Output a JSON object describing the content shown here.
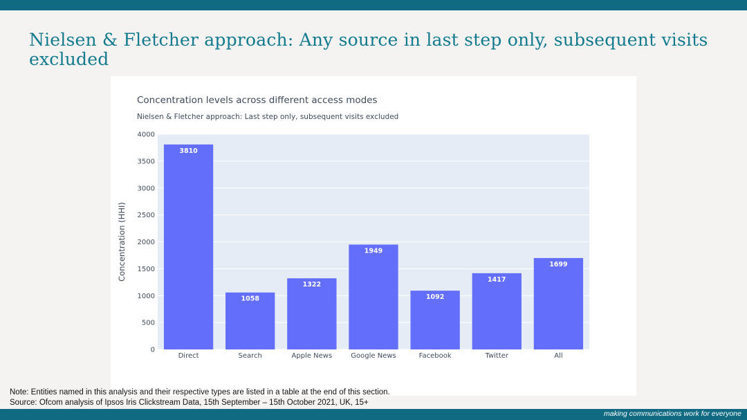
{
  "slide": {
    "title": "Nielsen & Fletcher approach: Any source in last step only, subsequent visits excluded"
  },
  "chart_data": {
    "type": "bar",
    "title": "Concentration levels across different access modes",
    "subtitle": "Nielsen & Fletcher approach: Last step only, subsequent visits excluded",
    "xlabel": "",
    "ylabel": "Concentration (HHI)",
    "categories": [
      "Direct",
      "Search",
      "Apple News",
      "Google News",
      "Facebook",
      "Twitter",
      "All"
    ],
    "values": [
      3810,
      1058,
      1322,
      1949,
      1092,
      1417,
      1699
    ],
    "data_labels": [
      "3810",
      "1058",
      "1322",
      "1949",
      "1092",
      "1417",
      "1699"
    ],
    "ylim": [
      0,
      4000
    ],
    "yticks": [
      0,
      500,
      1000,
      1500,
      2000,
      2500,
      3000,
      3500,
      4000
    ],
    "ytick_labels": [
      "0",
      "500",
      "1000",
      "1500",
      "2000",
      "2500",
      "3000",
      "3500",
      "4000"
    ],
    "grid": true,
    "colors": {
      "bar": "#636efa",
      "plot_bg": "#e5ecf6",
      "grid": "#ffffff",
      "text": "#3e4a5a"
    }
  },
  "notes": {
    "line1": "Note: Entities named in this analysis and their respective types are listed in a table at the end of this section.",
    "line2": "Source: Ofcom analysis of Ipsos Iris Clickstream Data, 15th September – 15th October 2021, UK, 15+"
  },
  "footer": {
    "tagline_prefix": "making communications work",
    "tagline_suffix": "for everyone"
  }
}
